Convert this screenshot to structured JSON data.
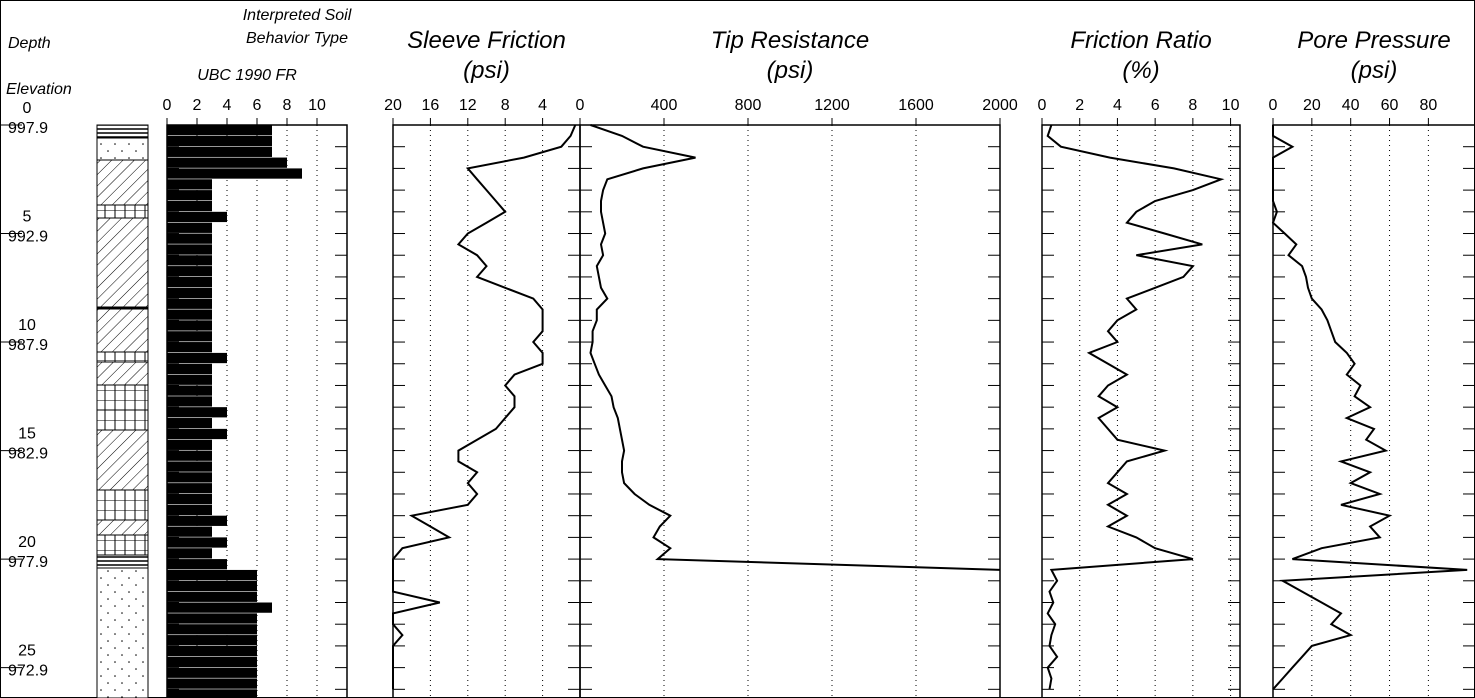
{
  "depth_axis": {
    "title": "Depth",
    "subtitle": "Elevation",
    "ylim": [
      0,
      26.4
    ],
    "yticks": [
      0,
      5,
      10,
      15,
      20,
      25
    ],
    "elevations": [
      997.9,
      992.9,
      987.9,
      982.9,
      977.9,
      972.9
    ],
    "minor_yticks": [
      1,
      2,
      3,
      4,
      5,
      6,
      7,
      8,
      9,
      10,
      11,
      12,
      13,
      14,
      15,
      16,
      17,
      18,
      19,
      20,
      21,
      22,
      23,
      24,
      25,
      26
    ],
    "samples": [
      0,
      0.5,
      1,
      1.5,
      2,
      2.5,
      3,
      3.5,
      4,
      4.5,
      5,
      5.5,
      6,
      6.5,
      7,
      7.5,
      8,
      8.5,
      9,
      9.5,
      10,
      10.5,
      11,
      11.5,
      12,
      12.5,
      13,
      13.5,
      14,
      14.5,
      15,
      15.5,
      16,
      16.5,
      17,
      17.5,
      18,
      18.5,
      19,
      19.5,
      20,
      20.5,
      21,
      21.5,
      22,
      22.5,
      23,
      23.5,
      24,
      24.5,
      25,
      25.5,
      26
    ]
  },
  "chart_data": [
    {
      "type": "bar",
      "title": [
        "Interpreted Soil",
        "Behavior Type"
      ],
      "subtitle": "UBC 1990 FR",
      "xlim": [
        0,
        12
      ],
      "xticks": [
        0,
        2,
        4,
        6,
        8,
        10
      ],
      "color": "#000000",
      "values": [
        7,
        7,
        7,
        8,
        9,
        3,
        3,
        3,
        4,
        3,
        3,
        3,
        3,
        3,
        3,
        3,
        3,
        3,
        3,
        3,
        3,
        4,
        3,
        3,
        3,
        3,
        4,
        3,
        4,
        3,
        3,
        3,
        3,
        3,
        3,
        3,
        4,
        3,
        4,
        3,
        4,
        6,
        6,
        6,
        7,
        6,
        6,
        6,
        6,
        6,
        6,
        6,
        6
      ]
    },
    {
      "type": "line",
      "title": [
        "Sleeve Friction",
        "(psi)"
      ],
      "xlim": [
        20,
        0
      ],
      "xticks": [
        20,
        16,
        12,
        8,
        4,
        0
      ],
      "color": "#000000",
      "values": [
        0.5,
        1,
        2,
        6,
        12,
        11,
        10,
        9,
        8,
        10,
        12,
        13,
        11,
        10,
        11,
        8,
        5,
        4,
        4,
        4,
        5,
        4,
        4,
        7,
        8,
        7,
        7,
        8,
        9,
        11,
        13,
        13,
        11,
        12,
        11,
        12,
        18,
        16,
        14,
        19,
        20,
        20,
        20,
        20,
        15,
        20,
        20,
        19,
        20,
        20,
        20,
        20,
        20
      ]
    },
    {
      "type": "line",
      "title": [
        "Tip Resistance",
        "(psi)"
      ],
      "xlim": [
        0,
        2000
      ],
      "xticks": [
        400,
        800,
        1200,
        1600,
        2000
      ],
      "color": "#000000",
      "values": [
        50,
        200,
        300,
        550,
        300,
        130,
        110,
        100,
        100,
        110,
        120,
        100,
        110,
        80,
        90,
        100,
        130,
        80,
        80,
        60,
        60,
        50,
        70,
        90,
        120,
        150,
        160,
        180,
        190,
        200,
        210,
        200,
        200,
        210,
        260,
        330,
        430,
        380,
        350,
        430,
        370,
        2000,
        null,
        null,
        null,
        null,
        null,
        null,
        null,
        null,
        null,
        null,
        null
      ]
    },
    {
      "type": "line",
      "title": [
        "Friction Ratio",
        "(%)"
      ],
      "xlim": [
        0,
        10.5
      ],
      "xticks": [
        0,
        2,
        4,
        6,
        8,
        10
      ],
      "color": "#000000",
      "values": [
        0.5,
        0.3,
        1,
        3.6,
        7,
        9.5,
        8,
        6,
        5,
        4.5,
        6.5,
        8.5,
        5,
        8,
        7.5,
        6,
        4.5,
        5,
        4,
        3.5,
        4,
        2.5,
        3.5,
        4.5,
        3.5,
        3,
        4,
        3,
        3.5,
        4,
        6.5,
        4.5,
        4,
        3.5,
        4.5,
        3.5,
        4.5,
        3.5,
        5,
        6,
        8,
        0.5,
        0.8,
        0.4,
        0.6,
        0.3,
        0.7,
        0.5,
        0.4,
        0.8,
        0.3,
        0.5,
        0.4
      ]
    },
    {
      "type": "line",
      "title": [
        "Pore Pressure",
        "(psi)"
      ],
      "xlim": [
        0,
        104
      ],
      "xticks": [
        0,
        20,
        40,
        60,
        80
      ],
      "color": "#000000",
      "values": [
        0,
        0,
        10,
        0,
        0,
        0,
        0,
        0,
        2,
        0,
        6,
        12,
        8,
        15,
        17,
        18,
        20,
        25,
        28,
        30,
        32,
        38,
        42,
        38,
        45,
        42,
        50,
        38,
        52,
        48,
        58,
        35,
        50,
        40,
        55,
        35,
        60,
        50,
        55,
        25,
        10,
        100,
        5,
        15,
        25,
        35,
        30,
        40,
        20,
        15,
        10,
        5,
        0
      ]
    }
  ]
}
